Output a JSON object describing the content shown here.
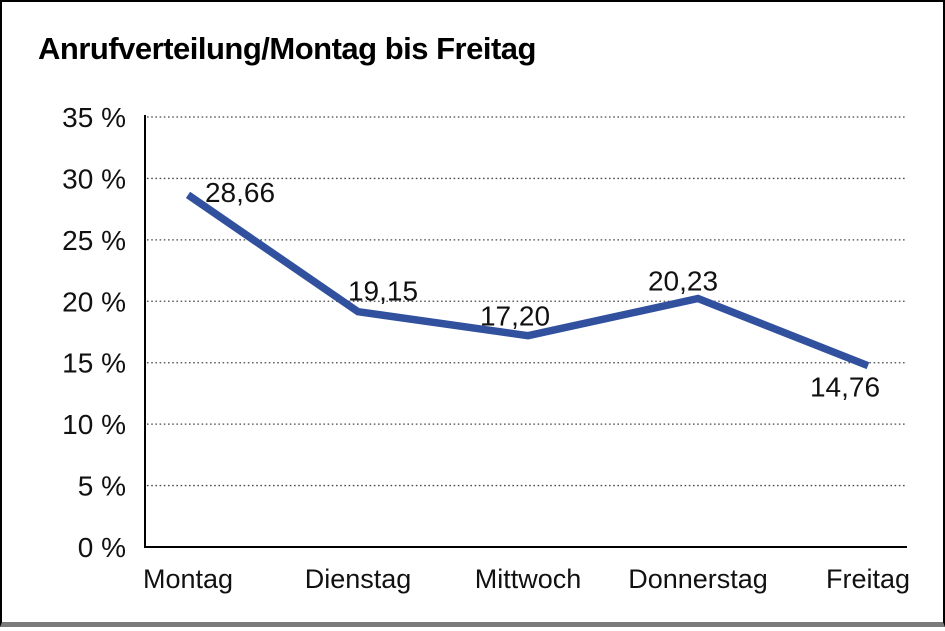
{
  "chart_data": {
    "type": "line",
    "title": "Anrufverteilung/Montag bis Freitag",
    "categories": [
      "Montag",
      "Dienstag",
      "Mittwoch",
      "Donnerstag",
      "Freitag"
    ],
    "series": [
      {
        "name": "Anrufverteilung",
        "values": [
          28.66,
          19.15,
          17.2,
          20.23,
          14.76
        ],
        "value_labels": [
          "28,66",
          "19,15",
          "17,20",
          "20,23",
          "14,76"
        ]
      }
    ],
    "xlabel": "",
    "ylabel": "",
    "ylim": [
      0,
      35
    ],
    "y_ticks": [
      0,
      5,
      10,
      15,
      20,
      25,
      30,
      35
    ],
    "y_tick_labels": [
      "0 %",
      "5 %",
      "10 %",
      "15 %",
      "20 %",
      "25 %",
      "30 %",
      "35 %"
    ],
    "grid": "horizontal-dotted",
    "legend": "none",
    "colors": {
      "line": "#31519e",
      "axis": "#000000",
      "gridline": "#4a4a4a",
      "text": "#111111",
      "frame_border": "#000000",
      "frame_bottom": "#7a7a7a"
    }
  }
}
